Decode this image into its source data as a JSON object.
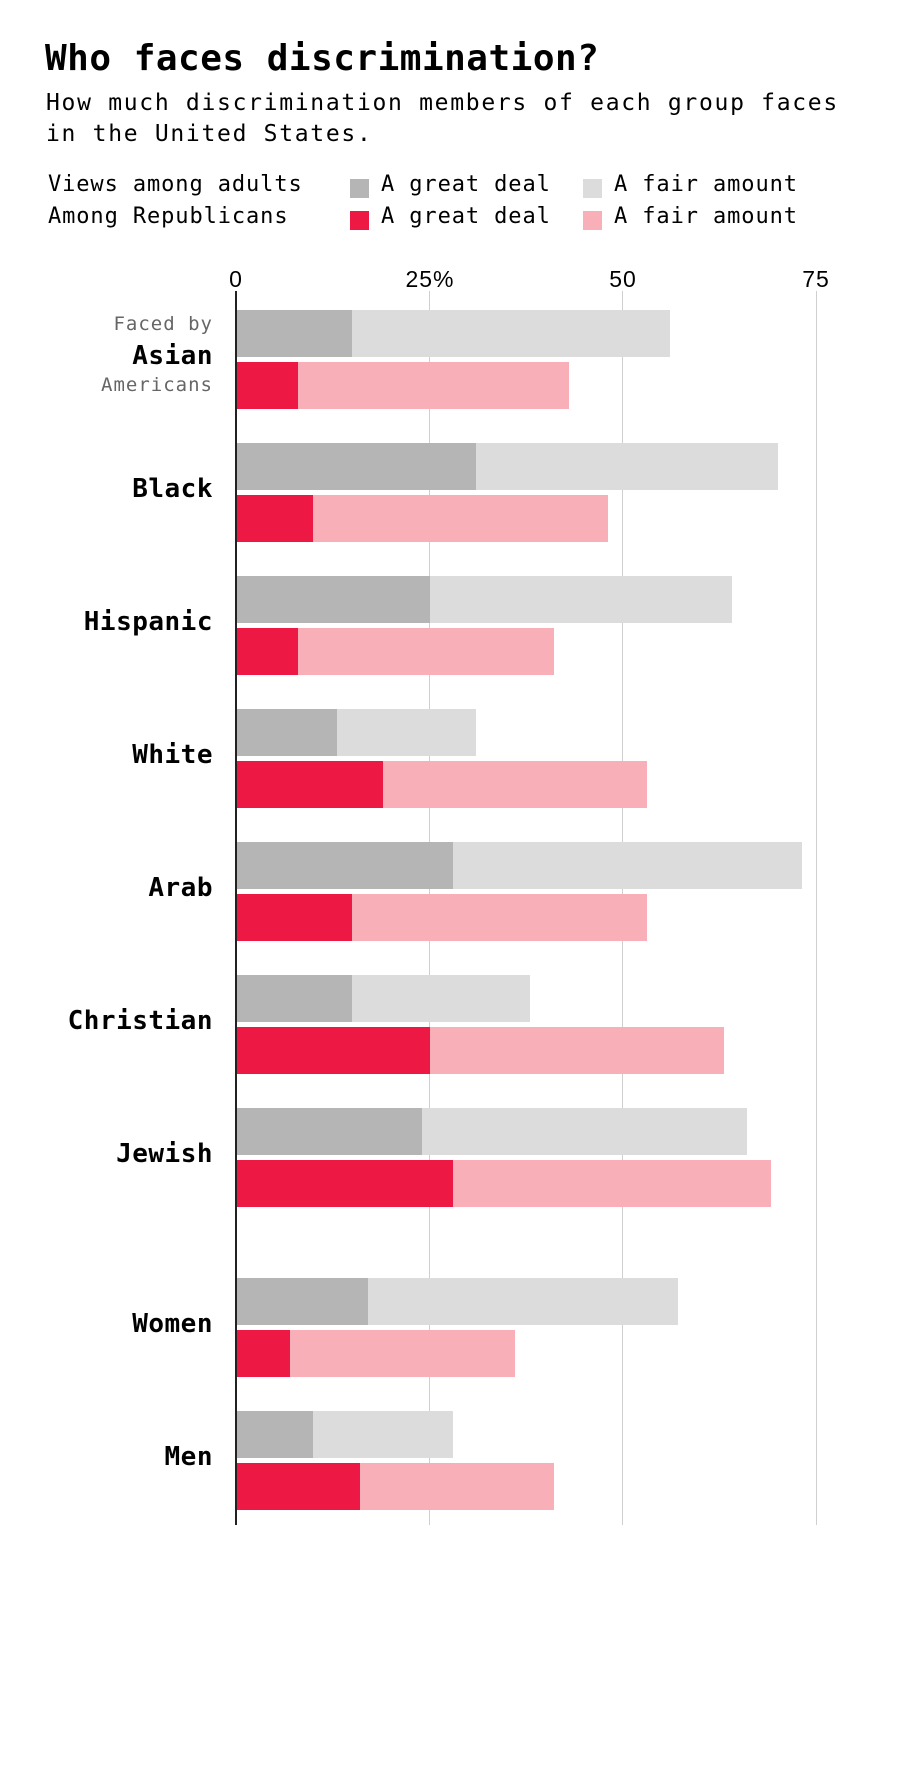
{
  "header": {
    "title": "Who faces discrimination?",
    "subtitle": "How much discrimination members of each group faces in the United States."
  },
  "legend": {
    "rows": [
      {
        "label": "Views among adults",
        "great_label": "A great deal",
        "fair_label": "A fair amount",
        "great_color": "#b5b5b5",
        "fair_color": "#dcdcdc"
      },
      {
        "label": "Among Republicans",
        "great_label": "A great deal",
        "fair_label": "A fair amount",
        "great_color": "#ee1844",
        "fair_color": "#f8afb8"
      }
    ]
  },
  "axis": {
    "ticks": [
      {
        "value": 0,
        "label": "0"
      },
      {
        "value": 25,
        "label": "25%"
      },
      {
        "value": 50,
        "label": "50"
      },
      {
        "value": 75,
        "label": "75"
      }
    ]
  },
  "labels": {
    "prefix": "Faced by",
    "asian_suffix": "Americans"
  },
  "colors": {
    "adults_great": "#b5b5b5",
    "adults_fair": "#dcdcdc",
    "rep_great": "#ee1844",
    "rep_fair": "#f8afb8",
    "gridline": "#cfcfcf",
    "axis": "#222222"
  },
  "chart_data": {
    "type": "bar",
    "orientation": "horizontal",
    "stacked": true,
    "title": "Who faces discrimination?",
    "subtitle": "How much discrimination members of each group faces in the United States.",
    "xlabel": "",
    "ylabel": "",
    "xlim": [
      0,
      75
    ],
    "x_ticks": [
      "0",
      "25%",
      "50",
      "75"
    ],
    "grid": true,
    "legend_position": "top",
    "categories": [
      "Asian",
      "Black",
      "Hispanic",
      "White",
      "Arab",
      "Christian",
      "Jewish",
      "Women",
      "Men"
    ],
    "series": [
      {
        "name": "Views among adults - A great deal",
        "values": [
          15,
          31,
          25,
          13,
          28,
          15,
          24,
          17,
          10
        ]
      },
      {
        "name": "Views among adults - A fair amount",
        "values": [
          41,
          39,
          39,
          18,
          45,
          23,
          42,
          40,
          18
        ]
      },
      {
        "name": "Among Republicans - A great deal",
        "values": [
          8,
          10,
          8,
          19,
          15,
          25,
          28,
          7,
          16
        ]
      },
      {
        "name": "Among Republicans - A fair amount",
        "values": [
          35,
          38,
          33,
          34,
          38,
          38,
          41,
          29,
          25
        ]
      }
    ],
    "totals": {
      "adults": [
        56,
        70,
        64,
        31,
        73,
        38,
        66,
        57,
        28
      ],
      "republicans": [
        43,
        48,
        41,
        53,
        53,
        63,
        69,
        36,
        41
      ]
    }
  },
  "rows": [
    {
      "name": "Asian",
      "center": 360
    },
    {
      "name": "Black",
      "center": 493
    },
    {
      "name": "Hispanic",
      "center": 626
    },
    {
      "name": "White",
      "center": 759
    },
    {
      "name": "Arab",
      "center": 892
    },
    {
      "name": "Christian",
      "center": 1025
    },
    {
      "name": "Jewish",
      "center": 1158
    },
    {
      "name": "Women",
      "center": 1328
    },
    {
      "name": "Men",
      "center": 1461
    }
  ]
}
